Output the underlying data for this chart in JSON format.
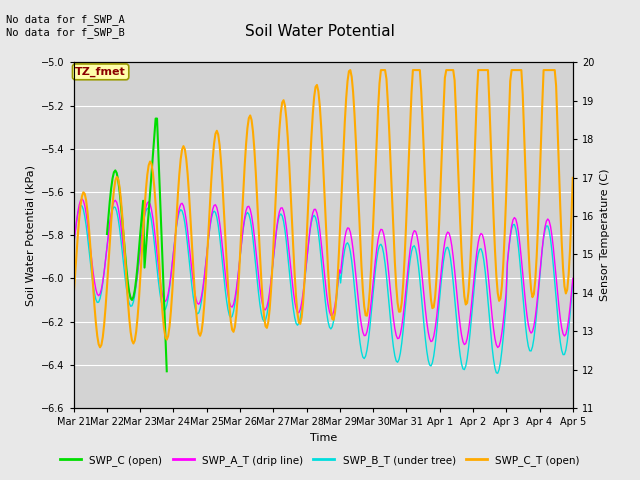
{
  "title": "Soil Water Potential",
  "ylabel_left": "Soil Water Potential (kPa)",
  "ylabel_right": "Sensor Temperature (C)",
  "xlabel": "Time",
  "ylim_left": [
    -6.6,
    -5.0
  ],
  "ylim_right": [
    11.0,
    20.0
  ],
  "yticks_left": [
    -6.6,
    -6.4,
    -6.2,
    -6.0,
    -5.8,
    -5.6,
    -5.4,
    -5.2,
    -5.0
  ],
  "yticks_right": [
    11.0,
    12.0,
    13.0,
    14.0,
    15.0,
    16.0,
    17.0,
    18.0,
    19.0,
    20.0
  ],
  "annotation_text": "No data for f_SWP_A\nNo data for f_SWP_B",
  "tz_label": "TZ_fmet",
  "bg_color": "#e8e8e8",
  "plot_bg_color": "#d3d3d3",
  "legend_entries": [
    {
      "label": "SWP_C (open)",
      "color": "#00dd00"
    },
    {
      "label": "SWP_A_T (drip line)",
      "color": "#ff00ff"
    },
    {
      "label": "SWP_B_T (under tree)",
      "color": "#00dddd"
    },
    {
      "label": "SWP_C_T (open)",
      "color": "#ffaa00"
    }
  ],
  "xtick_labels": [
    "Mar 21",
    "Mar 22",
    "Mar 23",
    "Mar 24",
    "Mar 25",
    "Mar 26",
    "Mar 27",
    "Mar 28",
    "Mar 29",
    "Mar 30",
    "Mar 31",
    "Apr 1",
    "Apr 2",
    "Apr 3",
    "Apr 4",
    "Apr 5"
  ]
}
